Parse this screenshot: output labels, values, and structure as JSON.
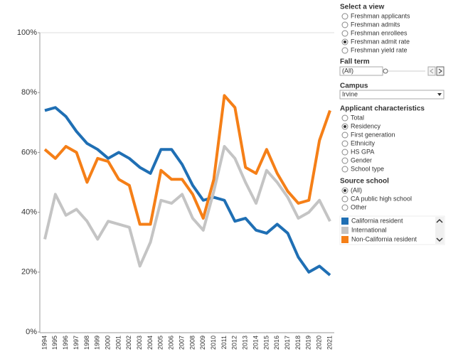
{
  "chart_data": {
    "type": "line",
    "categories": [
      "1994",
      "1995",
      "1996",
      "1997",
      "1998",
      "1999",
      "2000",
      "2001",
      "2002",
      "2003",
      "2004",
      "2005",
      "2006",
      "2007",
      "2008",
      "2009",
      "2010",
      "2011",
      "2012",
      "2013",
      "2014",
      "2015",
      "2016",
      "2017",
      "2018",
      "2019",
      "2020",
      "2021"
    ],
    "series": [
      {
        "name": "California resident",
        "color": "#1f6fb4",
        "values": [
          74,
          75,
          72,
          67,
          63,
          61,
          58,
          60,
          58,
          55,
          53,
          61,
          61,
          56,
          49,
          44,
          45,
          44,
          37,
          38,
          34,
          33,
          36,
          33,
          25,
          20,
          22,
          19
        ]
      },
      {
        "name": "International",
        "color": "#c4c4c4",
        "values": [
          31,
          46,
          39,
          41,
          37,
          31,
          37,
          36,
          35,
          22,
          30,
          44,
          43,
          46,
          38,
          34,
          47,
          62,
          58,
          50,
          43,
          54,
          50,
          45,
          38,
          40,
          44,
          37
        ]
      },
      {
        "name": "Non-California resident",
        "color": "#f57f17",
        "values": [
          61,
          58,
          62,
          60,
          50,
          58,
          57,
          51,
          49,
          36,
          36,
          54,
          51,
          51,
          46,
          38,
          51,
          79,
          75,
          55,
          53,
          61,
          53,
          47,
          43,
          44,
          64,
          74
        ]
      }
    ],
    "ylim": [
      0,
      100
    ],
    "yticks": [
      {
        "value": 0,
        "label": "0%"
      },
      {
        "value": 20,
        "label": "20%"
      },
      {
        "value": 40,
        "label": "40%"
      },
      {
        "value": 60,
        "label": "60%"
      },
      {
        "value": 80,
        "label": "80%"
      },
      {
        "value": 100,
        "label": "100%"
      }
    ],
    "grid": false
  },
  "controls": {
    "view": {
      "title": "Select a view",
      "options": [
        "Freshman applicants",
        "Freshman admits",
        "Freshman enrollees",
        "Freshman admit rate",
        "Freshman yield rate"
      ],
      "selected": 3
    },
    "fall_term": {
      "title": "Fall term",
      "value": "(All)"
    },
    "campus": {
      "title": "Campus",
      "value": "Irvine"
    },
    "characteristics": {
      "title": "Applicant characteristics",
      "options": [
        "Total",
        "Residency",
        "First generation",
        "Ethnicity",
        "HS GPA",
        "Gender",
        "School type"
      ],
      "selected": 1
    },
    "source_school": {
      "title": "Source school",
      "options": [
        "(All)",
        "CA public high school",
        "Other"
      ],
      "selected": 0
    }
  }
}
